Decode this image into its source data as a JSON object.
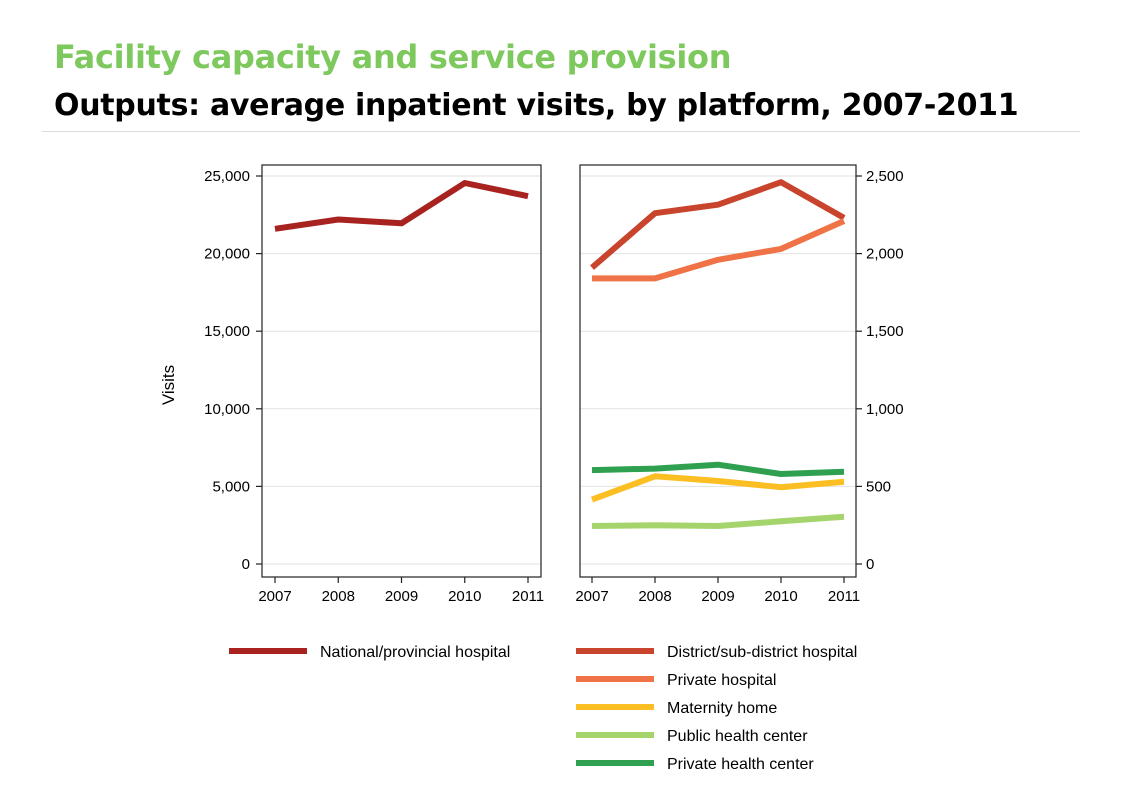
{
  "slide": {
    "title": "Facility capacity and service provision",
    "subtitle": "Outputs: average inpatient visits, by platform, 2007-2011",
    "title_color": "#7dc95e"
  },
  "chart_data": [
    {
      "type": "line",
      "panel": "left",
      "x": [
        2007,
        2008,
        2009,
        2010,
        2011
      ],
      "x_ticks": [
        "2007",
        "2008",
        "2009",
        "2010",
        "2011"
      ],
      "ylabel": "Visits",
      "ylim": [
        0,
        25000
      ],
      "y_ticks": [
        0,
        5000,
        10000,
        15000,
        20000,
        25000
      ],
      "y_tick_labels": [
        "0",
        "5,000",
        "10,000",
        "15,000",
        "20,000",
        "25,000"
      ],
      "y_axis_side": "left",
      "grid": true,
      "series": [
        {
          "name": "National/provincial hospital",
          "color": "#a8221f",
          "values": [
            21600,
            22200,
            21950,
            24550,
            23700
          ]
        }
      ]
    },
    {
      "type": "line",
      "panel": "right",
      "x": [
        2007,
        2008,
        2009,
        2010,
        2011
      ],
      "x_ticks": [
        "2007",
        "2008",
        "2009",
        "2010",
        "2011"
      ],
      "ylim": [
        0,
        2500
      ],
      "y_ticks": [
        0,
        500,
        1000,
        1500,
        2000,
        2500
      ],
      "y_tick_labels": [
        "0",
        "500",
        "1,000",
        "1,500",
        "2,000",
        "2,500"
      ],
      "y_axis_side": "right",
      "grid": true,
      "series": [
        {
          "name": "District/sub-district hospital",
          "color": "#c9442c",
          "values": [
            1910,
            2260,
            2315,
            2460,
            2230
          ]
        },
        {
          "name": "Private hospital",
          "color": "#ef7346",
          "values": [
            1840,
            1840,
            1960,
            2030,
            2210
          ]
        },
        {
          "name": "Maternity home",
          "color": "#fbbf23",
          "values": [
            415,
            565,
            535,
            495,
            530
          ]
        },
        {
          "name": "Public health center",
          "color": "#a5d46d",
          "values": [
            245,
            250,
            245,
            275,
            305
          ]
        },
        {
          "name": "Private health center",
          "color": "#2ea050",
          "values": [
            605,
            615,
            640,
            580,
            595
          ]
        }
      ]
    }
  ],
  "legend": {
    "placement": "bottom",
    "left": [
      "National/provincial hospital"
    ],
    "right": [
      "District/sub-district hospital",
      "Private hospital",
      "Maternity home",
      "Public health center",
      "Private health center"
    ]
  }
}
